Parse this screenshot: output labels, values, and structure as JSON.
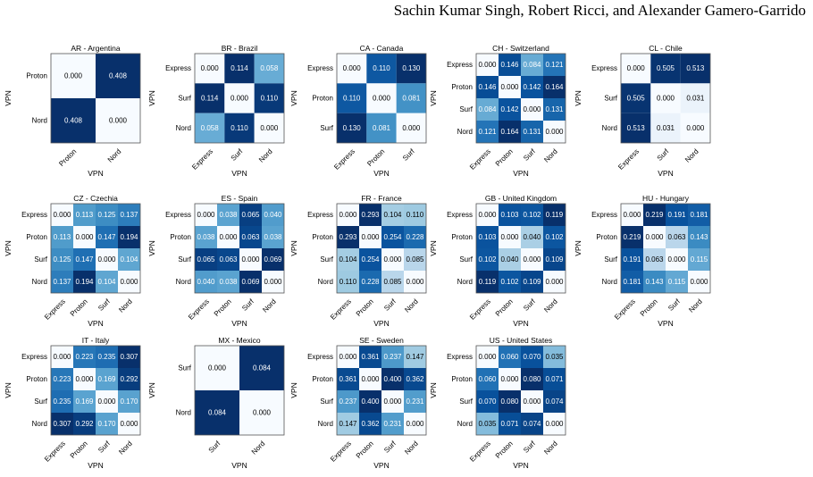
{
  "header": {
    "authors": "Sachin Kumar Singh, Robert Ricci, and Alexander Gamero-Garrido"
  },
  "chart_data": [
    {
      "type": "heatmap",
      "title": "AR - Argentina",
      "xlabel": "VPN",
      "ylabel": "VPN",
      "labels": [
        "Proton",
        "Nord"
      ],
      "values": [
        [
          0.0,
          0.408
        ],
        [
          0.408,
          0.0
        ]
      ]
    },
    {
      "type": "heatmap",
      "title": "BR - Brazil",
      "xlabel": "VPN",
      "ylabel": "VPN",
      "labels": [
        "Express",
        "Surf",
        "Nord"
      ],
      "values": [
        [
          0.0,
          0.114,
          0.058
        ],
        [
          0.114,
          0.0,
          0.11
        ],
        [
          0.058,
          0.11,
          0.0
        ]
      ]
    },
    {
      "type": "heatmap",
      "title": "CA - Canada",
      "xlabel": "VPN",
      "ylabel": "VPN",
      "labels": [
        "Express",
        "Proton",
        "Surf"
      ],
      "values": [
        [
          0.0,
          0.11,
          0.13
        ],
        [
          0.11,
          0.0,
          0.081
        ],
        [
          0.13,
          0.081,
          0.0
        ]
      ]
    },
    {
      "type": "heatmap",
      "title": "CH - Switzerland",
      "xlabel": "VPN",
      "ylabel": "VPN",
      "labels": [
        "Express",
        "Proton",
        "Surf",
        "Nord"
      ],
      "values": [
        [
          0.0,
          0.146,
          0.084,
          0.121
        ],
        [
          0.146,
          0.0,
          0.142,
          0.164
        ],
        [
          0.084,
          0.142,
          0.0,
          0.131
        ],
        [
          0.121,
          0.164,
          0.131,
          0.0
        ]
      ]
    },
    {
      "type": "heatmap",
      "title": "CL - Chile",
      "xlabel": "VPN",
      "ylabel": "VPN",
      "labels": [
        "Express",
        "Surf",
        "Nord"
      ],
      "values": [
        [
          0.0,
          0.505,
          0.513
        ],
        [
          0.505,
          0.0,
          0.031
        ],
        [
          0.513,
          0.031,
          0.0
        ]
      ]
    },
    {
      "type": "heatmap",
      "title": "CZ - Czechia",
      "xlabel": "VPN",
      "ylabel": "VPN",
      "labels": [
        "Express",
        "Proton",
        "Surf",
        "Nord"
      ],
      "values": [
        [
          0.0,
          0.113,
          0.125,
          0.137
        ],
        [
          0.113,
          0.0,
          0.147,
          0.194
        ],
        [
          0.125,
          0.147,
          0.0,
          0.104
        ],
        [
          0.137,
          0.194,
          0.104,
          0.0
        ]
      ]
    },
    {
      "type": "heatmap",
      "title": "ES - Spain",
      "xlabel": "VPN",
      "ylabel": "VPN",
      "labels": [
        "Express",
        "Proton",
        "Surf",
        "Nord"
      ],
      "values": [
        [
          0.0,
          0.038,
          0.065,
          0.04
        ],
        [
          0.038,
          0.0,
          0.063,
          0.038
        ],
        [
          0.065,
          0.063,
          0.0,
          0.069
        ],
        [
          0.04,
          0.038,
          0.069,
          0.0
        ]
      ]
    },
    {
      "type": "heatmap",
      "title": "FR - France",
      "xlabel": "VPN",
      "ylabel": "VPN",
      "labels": [
        "Express",
        "Proton",
        "Surf",
        "Nord"
      ],
      "values": [
        [
          0.0,
          0.293,
          0.104,
          0.11
        ],
        [
          0.293,
          0.0,
          0.254,
          0.228
        ],
        [
          0.104,
          0.254,
          0.0,
          0.085
        ],
        [
          0.11,
          0.228,
          0.085,
          0.0
        ]
      ]
    },
    {
      "type": "heatmap",
      "title": "GB - United Kingdom",
      "xlabel": "VPN",
      "ylabel": "VPN",
      "labels": [
        "Express",
        "Proton",
        "Surf",
        "Nord"
      ],
      "values": [
        [
          0.0,
          0.103,
          0.102,
          0.119
        ],
        [
          0.103,
          0.0,
          0.04,
          0.102
        ],
        [
          0.102,
          0.04,
          0.0,
          0.109
        ],
        [
          0.119,
          0.102,
          0.109,
          0.0
        ]
      ]
    },
    {
      "type": "heatmap",
      "title": "HU - Hungary",
      "xlabel": "VPN",
      "ylabel": "VPN",
      "labels": [
        "Express",
        "Proton",
        "Surf",
        "Nord"
      ],
      "values": [
        [
          0.0,
          0.219,
          0.191,
          0.181
        ],
        [
          0.219,
          0.0,
          0.063,
          0.143
        ],
        [
          0.191,
          0.063,
          0.0,
          0.115
        ],
        [
          0.181,
          0.143,
          0.115,
          0.0
        ]
      ]
    },
    {
      "type": "heatmap",
      "title": "IT - Italy",
      "xlabel": "VPN",
      "ylabel": "VPN",
      "labels": [
        "Express",
        "Proton",
        "Surf",
        "Nord"
      ],
      "values": [
        [
          0.0,
          0.223,
          0.235,
          0.307
        ],
        [
          0.223,
          0.0,
          0.169,
          0.292
        ],
        [
          0.235,
          0.169,
          0.0,
          0.17
        ],
        [
          0.307,
          0.292,
          0.17,
          0.0
        ]
      ]
    },
    {
      "type": "heatmap",
      "title": "MX - Mexico",
      "xlabel": "VPN",
      "ylabel": "VPN",
      "labels": [
        "Surf",
        "Nord"
      ],
      "values": [
        [
          0.0,
          0.084
        ],
        [
          0.084,
          0.0
        ]
      ]
    },
    {
      "type": "heatmap",
      "title": "SE - Sweden",
      "xlabel": "VPN",
      "ylabel": "VPN",
      "labels": [
        "Express",
        "Proton",
        "Surf",
        "Nord"
      ],
      "values": [
        [
          0.0,
          0.361,
          0.237,
          0.147
        ],
        [
          0.361,
          0.0,
          0.4,
          0.362
        ],
        [
          0.237,
          0.4,
          0.0,
          0.231
        ],
        [
          0.147,
          0.362,
          0.231,
          0.0
        ]
      ]
    },
    {
      "type": "heatmap",
      "title": "US - United States",
      "xlabel": "VPN",
      "ylabel": "VPN",
      "labels": [
        "Express",
        "Proton",
        "Surf",
        "Nord"
      ],
      "values": [
        [
          0.0,
          0.06,
          0.07,
          0.035
        ],
        [
          0.06,
          0.0,
          0.08,
          0.071
        ],
        [
          0.07,
          0.08,
          0.0,
          0.074
        ],
        [
          0.035,
          0.071,
          0.074,
          0.0
        ]
      ]
    }
  ]
}
